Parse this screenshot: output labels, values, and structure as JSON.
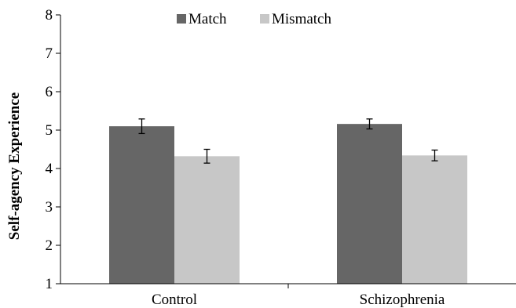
{
  "chart_data": {
    "type": "bar",
    "title": "",
    "xlabel": "",
    "ylabel": "Self-agency Experience",
    "ylim": [
      1,
      8
    ],
    "yticks": [
      1,
      2,
      3,
      4,
      5,
      6,
      7,
      8
    ],
    "categories": [
      "Control",
      "Schizophrenia"
    ],
    "series": [
      {
        "name": "Match",
        "color": "#666666",
        "values": [
          5.1,
          5.16
        ],
        "errors": [
          0.19,
          0.13
        ]
      },
      {
        "name": "Mismatch",
        "color": "#c7c7c7",
        "values": [
          4.32,
          4.34
        ],
        "errors": [
          0.18,
          0.14
        ]
      }
    ],
    "grid": false,
    "legend": "top-center"
  }
}
